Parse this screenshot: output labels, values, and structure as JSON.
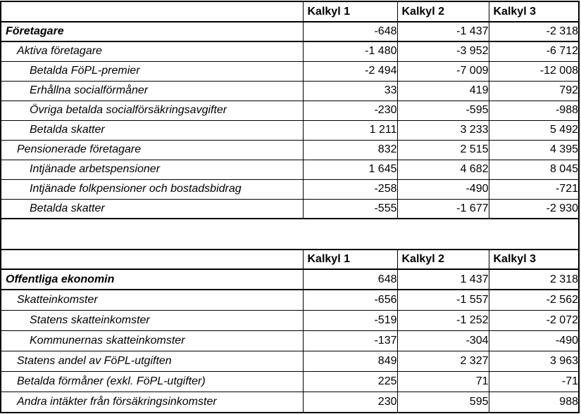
{
  "colors": {
    "background": "#ffffff",
    "text": "#000000",
    "border": "#000000"
  },
  "tables": [
    {
      "id": "foretagare",
      "header": [
        "",
        "Kalkyl 1",
        "Kalkyl 2",
        "Kalkyl 3"
      ],
      "rows": [
        {
          "label": "Företagare",
          "level": 0,
          "section": true,
          "values": [
            "-648",
            "-1 437",
            "-2 318"
          ]
        },
        {
          "label": "Aktiva företagare",
          "level": 1,
          "section": false,
          "values": [
            "-1 480",
            "-3 952",
            "-6 712"
          ]
        },
        {
          "label": "Betalda FöPL-premier",
          "level": 2,
          "section": false,
          "values": [
            "-2 494",
            "-7 009",
            "-12 008"
          ]
        },
        {
          "label": "Erhållna socialförmåner",
          "level": 2,
          "section": false,
          "values": [
            "33",
            "419",
            "792"
          ]
        },
        {
          "label": "Övriga betalda socialförsäkringsavgifter",
          "level": 2,
          "section": false,
          "values": [
            "-230",
            "-595",
            "-988"
          ]
        },
        {
          "label": "Betalda skatter",
          "level": 2,
          "section": false,
          "values": [
            "1 211",
            "3 233",
            "5 492"
          ]
        },
        {
          "label": "Pensionerade företagare",
          "level": 1,
          "section": false,
          "values": [
            "832",
            "2 515",
            "4 395"
          ]
        },
        {
          "label": "Intjänade arbetspensioner",
          "level": 2,
          "section": false,
          "values": [
            "1 645",
            "4 682",
            "8 045"
          ]
        },
        {
          "label": "Intjänade folkpensioner och bostadsbidrag",
          "level": 2,
          "section": false,
          "values": [
            "-258",
            "-490",
            "-721"
          ]
        },
        {
          "label": "Betalda skatter",
          "level": 2,
          "section": false,
          "values": [
            "-555",
            "-1 677",
            "-2 930"
          ]
        }
      ]
    },
    {
      "id": "offentliga-ekonomin",
      "header": [
        "",
        "Kalkyl 1",
        "Kalkyl 2",
        "Kalkyl 3"
      ],
      "rows": [
        {
          "label": "Offentliga ekonomin",
          "level": 0,
          "section": true,
          "values": [
            "648",
            "1 437",
            "2 318"
          ]
        },
        {
          "label": "Skatteinkomster",
          "level": 1,
          "section": false,
          "values": [
            "-656",
            "-1 557",
            "-2 562"
          ]
        },
        {
          "label": "Statens skatteinkomster",
          "level": 2,
          "section": false,
          "values": [
            "-519",
            "-1 252",
            "-2 072"
          ]
        },
        {
          "label": "Kommunernas skatteinkomster",
          "level": 2,
          "section": false,
          "values": [
            "-137",
            "-304",
            "-490"
          ]
        },
        {
          "label": "Statens andel av FöPL-utgiften",
          "level": 1,
          "section": false,
          "values": [
            "849",
            "2 327",
            "3 963"
          ]
        },
        {
          "label": "Betalda förmåner (exkl. FöPL-utgifter)",
          "level": 1,
          "section": false,
          "values": [
            "225",
            "71",
            "-71"
          ]
        },
        {
          "label": "Andra intäkter från försäkringsinkomster",
          "level": 1,
          "section": false,
          "values": [
            "230",
            "595",
            "988"
          ]
        }
      ]
    }
  ]
}
